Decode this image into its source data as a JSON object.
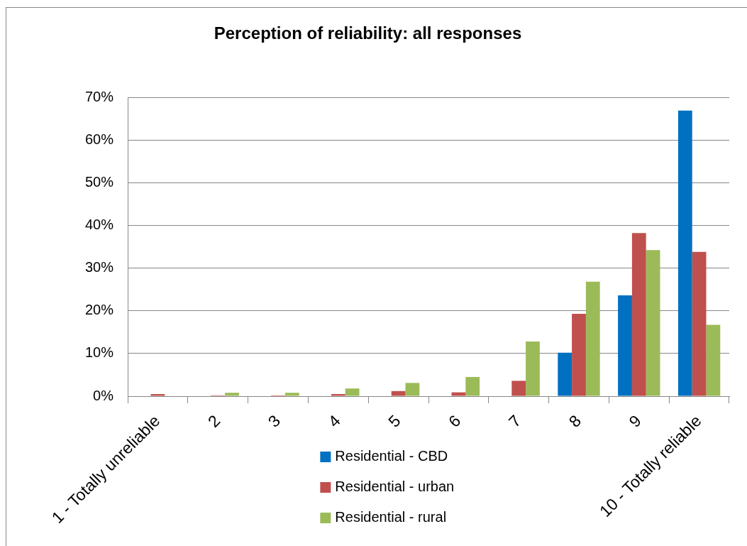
{
  "chart_data": {
    "type": "bar",
    "title": "Perception of reliability: all responses",
    "categories": [
      "1 - Totally unreliable",
      "2",
      "3",
      "4",
      "5",
      "6",
      "7",
      "8",
      "9",
      "10 - Totally reliable"
    ],
    "series": [
      {
        "name": "Residential - CBD",
        "color": "#0070c0",
        "values": [
          0,
          0,
          0,
          0,
          0,
          0,
          0,
          10.2,
          23.6,
          66.9
        ]
      },
      {
        "name": "Residential - urban",
        "color": "#c0504d",
        "values": [
          0.5,
          0.2,
          0.2,
          0.5,
          1.2,
          0.9,
          3.6,
          19.3,
          38.2,
          33.8
        ]
      },
      {
        "name": "Residential - rural",
        "color": "#9bbb59",
        "values": [
          0,
          0.8,
          0.8,
          1.8,
          3.1,
          4.5,
          12.8,
          26.8,
          34.2,
          16.7
        ]
      }
    ],
    "ylim": [
      0,
      70
    ],
    "yticks": [
      {
        "value": 0,
        "label": "0%"
      },
      {
        "value": 10,
        "label": "10%"
      },
      {
        "value": 20,
        "label": "20%"
      },
      {
        "value": 30,
        "label": "30%"
      },
      {
        "value": 40,
        "label": "40%"
      },
      {
        "value": 50,
        "label": "50%"
      },
      {
        "value": 60,
        "label": "60%"
      },
      {
        "value": 70,
        "label": "70%"
      }
    ],
    "grid": "y",
    "legend": "bottom"
  }
}
